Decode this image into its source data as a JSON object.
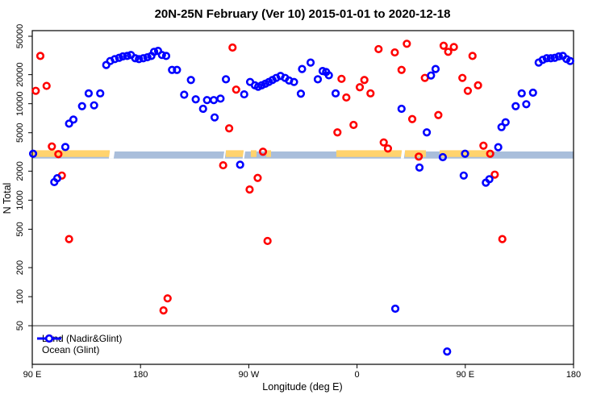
{
  "chart_data": {
    "type": "scatter",
    "title": "20N-25N February (Ver 10)   2015-01-01 to 2020-12-18",
    "xlabel": "Longitude (deg E)",
    "ylabel": "N Total",
    "x_axis": {
      "note": "longitude unwrapped eastward from 90E",
      "min": 90,
      "max": 540,
      "ticks": [
        {
          "deg": 90,
          "label": "90 E"
        },
        {
          "deg": 180,
          "label": "180"
        },
        {
          "deg": 270,
          "label": "90 W"
        },
        {
          "deg": 360,
          "label": "0"
        },
        {
          "deg": 450,
          "label": "90 E"
        },
        {
          "deg": 540,
          "label": "180"
        }
      ]
    },
    "y_axis": {
      "scale": "log",
      "min": 20,
      "max": 57000,
      "tick_labels": [
        "50000",
        "20000",
        "10000",
        "5000",
        "2000",
        "1000",
        "500",
        "200",
        "100",
        "50"
      ],
      "tick_values": [
        50000,
        20000,
        10000,
        5000,
        2000,
        1000,
        500,
        200,
        100,
        50
      ]
    },
    "reference_line": {
      "value": 50,
      "color": "#333333"
    },
    "band": {
      "description": "horizontal target stripe at about N=2700-3200",
      "value_top": 3200,
      "value_bottom": 2700,
      "base_color": "#a9bedb",
      "orange_color": "#ffd36e",
      "orange_segments_deg": [
        {
          "from": 90,
          "to": 154.5
        },
        {
          "from": 250.9,
          "to": 265.7
        },
        {
          "from": 271.7,
          "to": 276.4
        },
        {
          "from": 284.5,
          "to": 288.5
        },
        {
          "from": 342.8,
          "to": 397.2
        },
        {
          "from": 399.8,
          "to": 417.3
        },
        {
          "from": 428.7,
          "to": 471.6
        }
      ],
      "white_gaps_deg": [
        {
          "from": 154.5,
          "to": 158.5
        },
        {
          "from": 249.6,
          "to": 250.9
        },
        {
          "from": 265.7,
          "to": 267.0
        },
        {
          "from": 397.2,
          "to": 399.8
        }
      ]
    },
    "legend": {
      "position": "bottom-left",
      "entries": [
        {
          "label": "Land (Nadir&Glint)",
          "color": "#ff0000"
        },
        {
          "label": "Ocean (Glint)",
          "color": "#0000ff"
        }
      ]
    },
    "series": [
      {
        "name": "Land (Nadir&Glint)",
        "color": "#ff0000",
        "marker": "open-circle",
        "points": [
          [
            96.7,
            31300
          ],
          [
            92.9,
            13600
          ],
          [
            101.9,
            15300
          ],
          [
            106.3,
            3600
          ],
          [
            111.7,
            3000
          ],
          [
            114.6,
            1800
          ],
          [
            256.5,
            38200
          ],
          [
            259.5,
            14000
          ],
          [
            253.7,
            5550
          ],
          [
            281.8,
            3180
          ],
          [
            248.7,
            2300
          ],
          [
            277.4,
            1700
          ],
          [
            270.7,
            1290
          ],
          [
            377.9,
            36800
          ],
          [
            391.4,
            34000
          ],
          [
            401.4,
            41800
          ],
          [
            397.0,
            22400
          ],
          [
            347.1,
            18100
          ],
          [
            366.1,
            17600
          ],
          [
            362.3,
            14800
          ],
          [
            371.2,
            12800
          ],
          [
            351.1,
            11600
          ],
          [
            357.1,
            6030
          ],
          [
            343.7,
            5040
          ],
          [
            405.9,
            6930
          ],
          [
            427.6,
            7630
          ],
          [
            382.2,
            3970
          ],
          [
            385.7,
            3430
          ],
          [
            411.3,
            2830
          ],
          [
            416.4,
            18500
          ],
          [
            432.0,
            39900
          ],
          [
            435.8,
            34500
          ],
          [
            440.5,
            38700
          ],
          [
            456.0,
            31300
          ],
          [
            447.6,
            18500
          ],
          [
            452.1,
            13600
          ],
          [
            460.6,
            15500
          ],
          [
            465.1,
            3670
          ],
          [
            470.7,
            3030
          ],
          [
            474.5,
            1840
          ],
          [
            120.6,
            395
          ],
          [
            285.6,
            378
          ],
          [
            480.8,
            395
          ],
          [
            202.5,
            96
          ],
          [
            199.1,
            72
          ]
        ]
      },
      {
        "name": "Ocean (Glint)",
        "color": "#0000ff",
        "marker": "open-circle",
        "points": [
          [
            90.7,
            3030
          ],
          [
            117.5,
            3560
          ],
          [
            120.6,
            6220
          ],
          [
            124.2,
            6850
          ],
          [
            131.4,
            9430
          ],
          [
            136.9,
            12800
          ],
          [
            141.4,
            9620
          ],
          [
            146.5,
            12800
          ],
          [
            151.5,
            25200
          ],
          [
            154.8,
            27700
          ],
          [
            158.6,
            29000
          ],
          [
            162.2,
            29900
          ],
          [
            165.3,
            30900
          ],
          [
            168.9,
            31300
          ],
          [
            172.0,
            32000
          ],
          [
            175.6,
            29600
          ],
          [
            178.7,
            29000
          ],
          [
            182.3,
            29600
          ],
          [
            185.7,
            30300
          ],
          [
            189.0,
            31300
          ],
          [
            191.3,
            34500
          ],
          [
            194.6,
            35300
          ],
          [
            197.8,
            32000
          ],
          [
            201.3,
            31300
          ],
          [
            108.3,
            1540
          ],
          [
            110.8,
            1690
          ],
          [
            206.2,
            22400
          ],
          [
            210.3,
            22400
          ],
          [
            221.9,
            17600
          ],
          [
            216.3,
            12400
          ],
          [
            225.9,
            11100
          ],
          [
            232.0,
            8850
          ],
          [
            235.3,
            10900
          ],
          [
            240.9,
            10900
          ],
          [
            246.5,
            11300
          ],
          [
            241.6,
            7210
          ],
          [
            251.0,
            17900
          ],
          [
            262.8,
            2330
          ],
          [
            266.2,
            12500
          ],
          [
            271.1,
            16800
          ],
          [
            275.1,
            15500
          ],
          [
            277.8,
            15000
          ],
          [
            280.7,
            15500
          ],
          [
            283.8,
            16100
          ],
          [
            286.7,
            16800
          ],
          [
            289.7,
            17600
          ],
          [
            292.8,
            18500
          ],
          [
            296.4,
            19400
          ],
          [
            300.2,
            18500
          ],
          [
            303.5,
            17400
          ],
          [
            307.6,
            16800
          ],
          [
            313.3,
            12700
          ],
          [
            314.3,
            22900
          ],
          [
            321.4,
            26700
          ],
          [
            327.4,
            17900
          ],
          [
            331.4,
            21800
          ],
          [
            334.3,
            21300
          ],
          [
            336.6,
            19700
          ],
          [
            342.2,
            12800
          ],
          [
            397.0,
            8850
          ],
          [
            418.0,
            5040
          ],
          [
            425.3,
            22900
          ],
          [
            421.5,
            19600
          ],
          [
            411.9,
            2180
          ],
          [
            431.3,
            2790
          ],
          [
            449.8,
            3030
          ],
          [
            448.7,
            1800
          ],
          [
            467.1,
            1520
          ],
          [
            470.0,
            1650
          ],
          [
            477.4,
            3540
          ],
          [
            483.5,
            6420
          ],
          [
            480.1,
            5720
          ],
          [
            491.9,
            9430
          ],
          [
            500.7,
            9880
          ],
          [
            496.9,
            12800
          ],
          [
            506.3,
            13000
          ],
          [
            511.0,
            26700
          ],
          [
            514.4,
            28500
          ],
          [
            517.7,
            29600
          ],
          [
            521.1,
            29600
          ],
          [
            524.4,
            29900
          ],
          [
            527.8,
            30900
          ],
          [
            531.1,
            31300
          ],
          [
            534.2,
            29000
          ],
          [
            537.2,
            27700
          ],
          [
            391.8,
            75
          ],
          [
            434.9,
            27
          ]
        ]
      }
    ]
  }
}
